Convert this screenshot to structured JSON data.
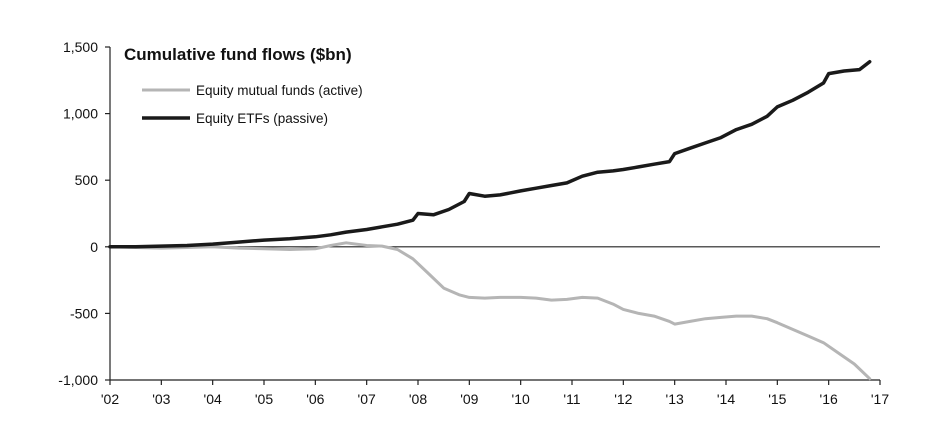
{
  "chart_data": {
    "type": "line",
    "title": "Cumulative fund flows ($bn)",
    "xlabel": "",
    "ylabel": "",
    "x_ticks": [
      "'02",
      "'03",
      "'04",
      "'05",
      "'06",
      "'07",
      "'08",
      "'09",
      "'10",
      "'11",
      "'12",
      "'13",
      "'14",
      "'15",
      "'16",
      "'17"
    ],
    "y_ticks": [
      "1,500",
      "1,000",
      "500",
      "0",
      "-500",
      "-1,000"
    ],
    "xlim": [
      2002,
      2017
    ],
    "ylim": [
      -1000,
      1500
    ],
    "grid": false,
    "zero_line": true,
    "legend_position": "top-left",
    "series": [
      {
        "name": "Equity mutual funds (active)",
        "color": "#b5b5b5",
        "x": [
          2002.0,
          2002.5,
          2003.0,
          2003.5,
          2004.0,
          2004.5,
          2005.0,
          2005.5,
          2006.0,
          2006.3,
          2006.6,
          2007.0,
          2007.3,
          2007.6,
          2007.9,
          2008.2,
          2008.5,
          2008.8,
          2009.0,
          2009.3,
          2009.6,
          2010.0,
          2010.3,
          2010.6,
          2010.9,
          2011.2,
          2011.5,
          2011.8,
          2012.0,
          2012.3,
          2012.6,
          2012.9,
          2013.0,
          2013.3,
          2013.6,
          2013.9,
          2014.2,
          2014.5,
          2014.8,
          2015.0,
          2015.3,
          2015.6,
          2015.9,
          2016.2,
          2016.5,
          2016.8
        ],
        "values": [
          0,
          -5,
          -10,
          -5,
          0,
          -10,
          -15,
          -20,
          -15,
          10,
          30,
          10,
          5,
          -20,
          -90,
          -200,
          -310,
          -360,
          -380,
          -385,
          -380,
          -380,
          -385,
          -400,
          -395,
          -380,
          -385,
          -430,
          -470,
          -500,
          -520,
          -560,
          -580,
          -560,
          -540,
          -530,
          -520,
          -520,
          -540,
          -570,
          -620,
          -670,
          -720,
          -800,
          -880,
          -990
        ]
      },
      {
        "name": "Equity ETFs (passive)",
        "color": "#1a1a1a",
        "x": [
          2002.0,
          2002.5,
          2003.0,
          2003.5,
          2004.0,
          2004.5,
          2005.0,
          2005.5,
          2006.0,
          2006.3,
          2006.6,
          2007.0,
          2007.3,
          2007.6,
          2007.9,
          2008.0,
          2008.3,
          2008.6,
          2008.9,
          2009.0,
          2009.3,
          2009.6,
          2010.0,
          2010.3,
          2010.6,
          2010.9,
          2011.2,
          2011.5,
          2011.8,
          2012.0,
          2012.3,
          2012.6,
          2012.9,
          2013.0,
          2013.3,
          2013.6,
          2013.9,
          2014.2,
          2014.5,
          2014.8,
          2015.0,
          2015.3,
          2015.6,
          2015.9,
          2016.0,
          2016.3,
          2016.6,
          2016.8
        ],
        "values": [
          0,
          0,
          5,
          10,
          20,
          35,
          50,
          60,
          75,
          90,
          110,
          130,
          150,
          170,
          200,
          250,
          240,
          280,
          340,
          400,
          380,
          390,
          420,
          440,
          460,
          480,
          530,
          560,
          570,
          580,
          600,
          620,
          640,
          700,
          740,
          780,
          820,
          880,
          920,
          980,
          1050,
          1100,
          1160,
          1230,
          1300,
          1320,
          1330,
          1390
        ]
      }
    ]
  }
}
